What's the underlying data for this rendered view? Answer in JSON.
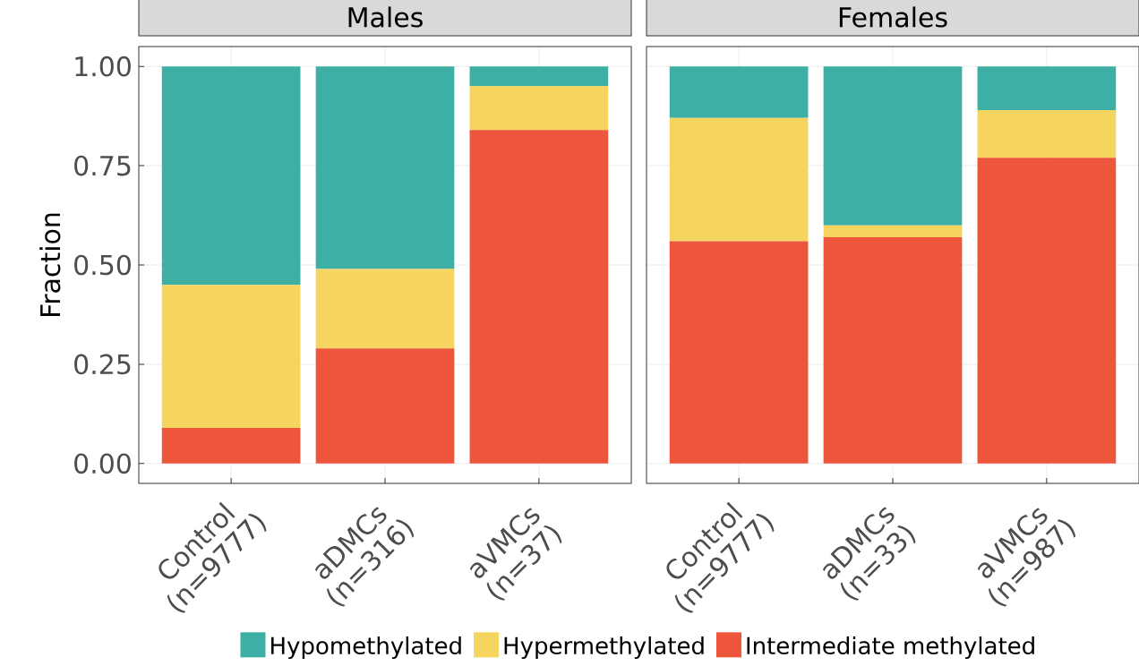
{
  "chart_data": [
    {
      "type": "bar",
      "stacked": true,
      "title": "Males",
      "ylabel": "Fraction",
      "categories": [
        "Control (n=9777)",
        "aDMCs (n=316)",
        "aVMCs (n=37)"
      ],
      "series": [
        {
          "color": "#ee563b",
          "values": [
            0.09,
            0.29,
            0.84
          ]
        },
        {
          "color": "#f5d55f",
          "values": [
            0.36,
            0.2,
            0.11
          ]
        },
        {
          "color": "#3eafa5",
          "values": [
            0.55,
            0.51,
            0.05
          ]
        }
      ],
      "ylim": [
        -0.05,
        1.05
      ],
      "yticks": [
        {
          "value": 0,
          "label": "0.00"
        },
        {
          "value": 0.25,
          "label": "0.25"
        },
        {
          "value": 0.5,
          "label": "0.50"
        },
        {
          "value": 0.75,
          "label": "0.75"
        },
        {
          "value": 1,
          "label": "1.00"
        }
      ],
      "grid": true
    },
    {
      "type": "bar",
      "stacked": true,
      "title": "Females",
      "categories": [
        "Control (n=9777)",
        "aDMCs (n=33)",
        "aVMCs (n=987)"
      ],
      "series": [
        {
          "name": "Intermediate methylated",
          "color": "#ee563b",
          "values": [
            0.56,
            0.57,
            0.77
          ]
        },
        {
          "name": "Hypermethylated",
          "color": "#f5d55f",
          "values": [
            0.31,
            0.03,
            0.12
          ]
        },
        {
          "name": "Hypomethylated",
          "color": "#3eafa5",
          "values": [
            0.13,
            0.4,
            0.11
          ]
        }
      ],
      "ylim": [
        -0.05,
        1.05
      ],
      "yticks": [
        0,
        0.25,
        0.5,
        0.75,
        1
      ],
      "grid": true,
      "legend": "bottom",
      "tick_labels": "x"
    }
  ]
}
